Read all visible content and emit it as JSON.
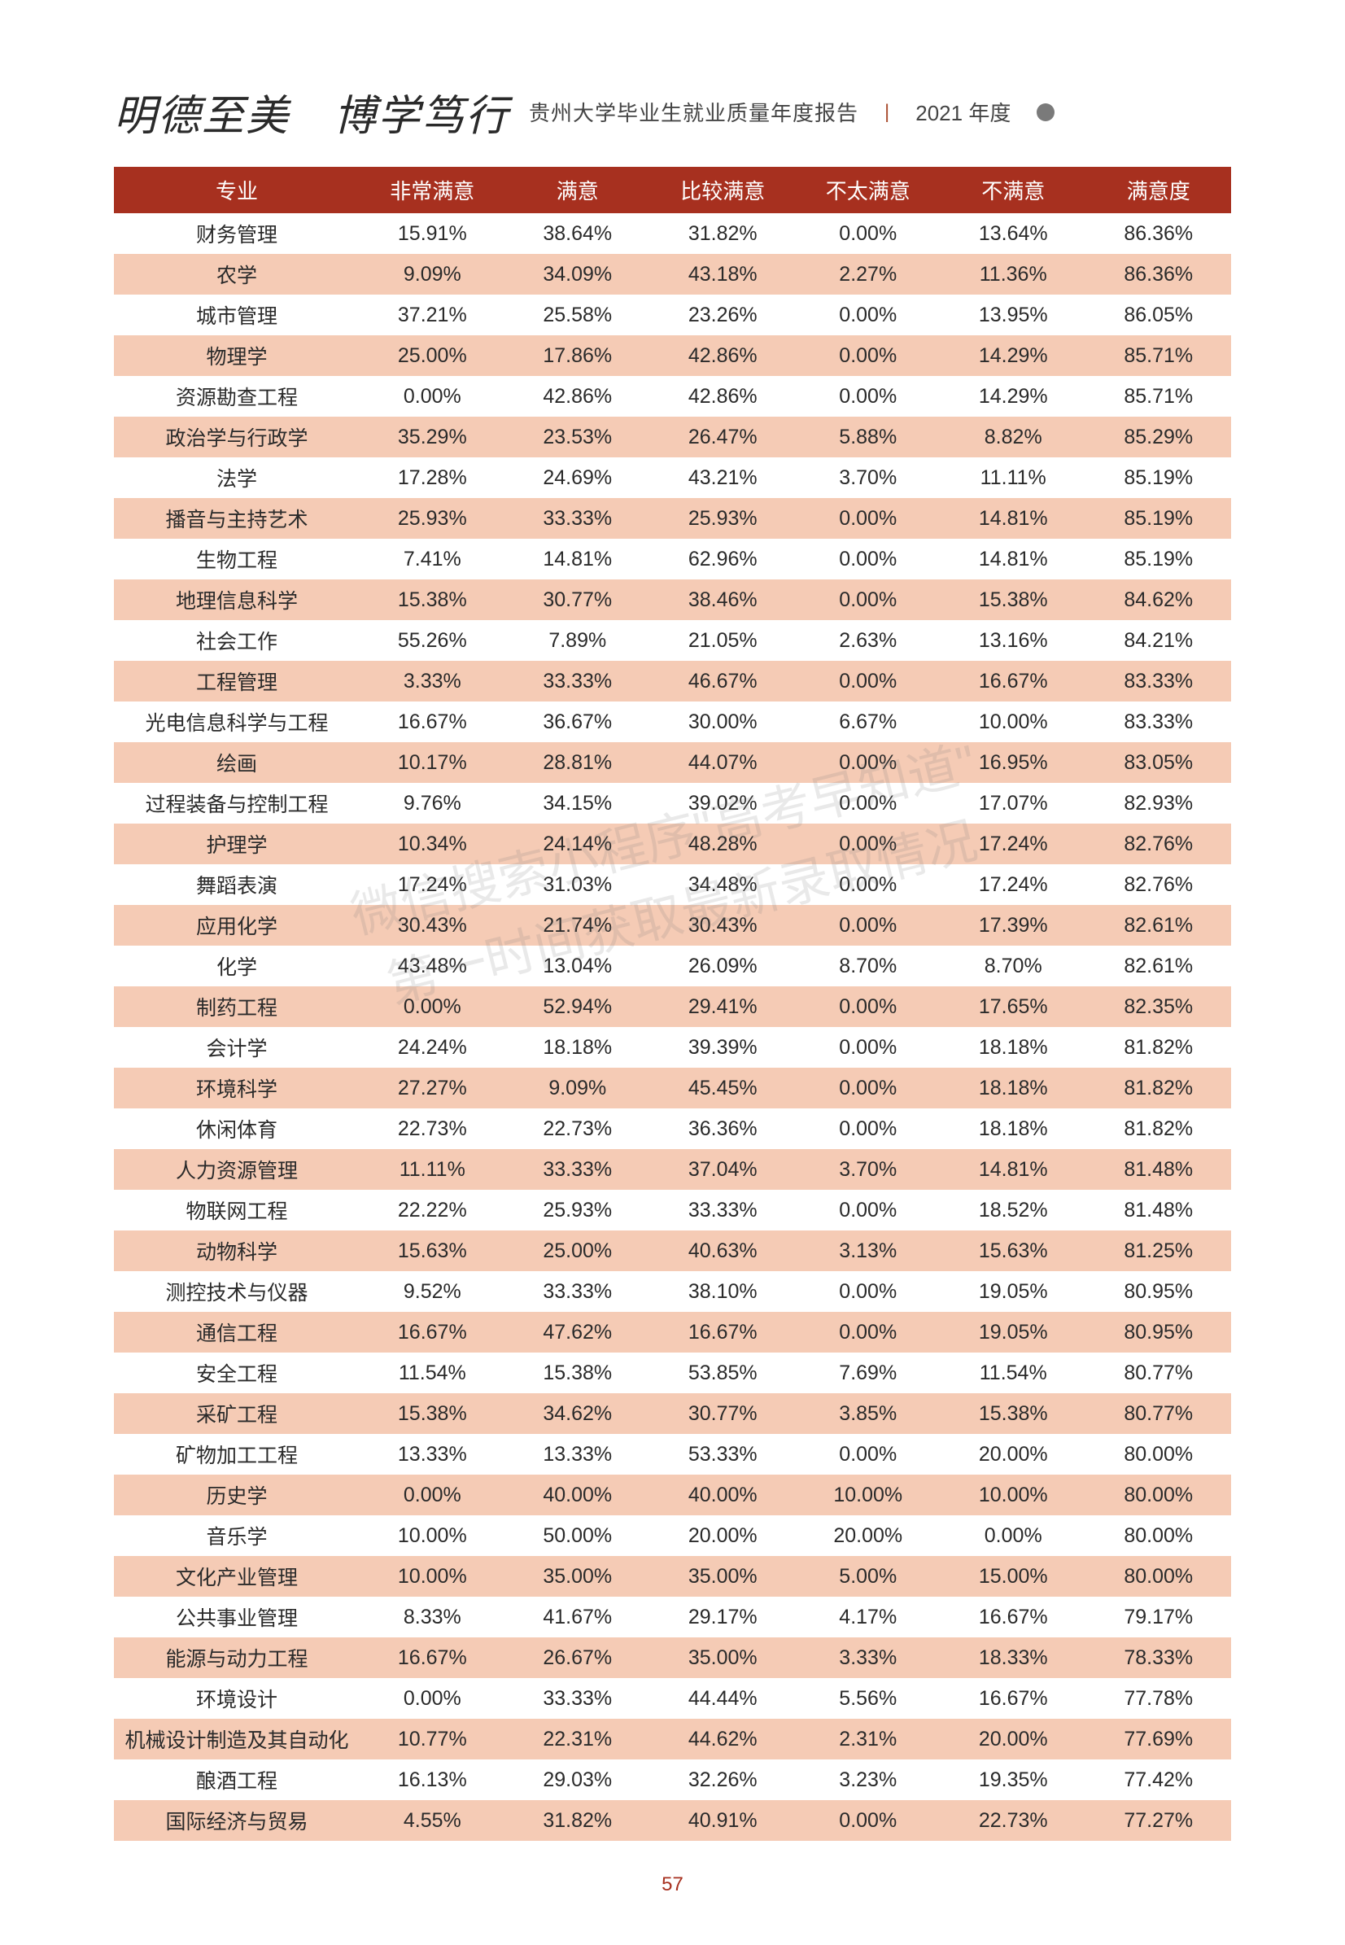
{
  "header": {
    "motto": "明德至美　博学笃行",
    "report_title": "贵州大学毕业生就业质量年度报告",
    "year": "2021 年度"
  },
  "watermark": {
    "line1": "微信搜索小程序\"高考早知道\"",
    "line2": "第一时间获取最新录取情况"
  },
  "page_number": "57",
  "table": {
    "columns": [
      "专业",
      "非常满意",
      "满意",
      "比较满意",
      "不太满意",
      "不满意",
      "满意度"
    ],
    "rows": [
      [
        "财务管理",
        "15.91%",
        "38.64%",
        "31.82%",
        "0.00%",
        "13.64%",
        "86.36%"
      ],
      [
        "农学",
        "9.09%",
        "34.09%",
        "43.18%",
        "2.27%",
        "11.36%",
        "86.36%"
      ],
      [
        "城市管理",
        "37.21%",
        "25.58%",
        "23.26%",
        "0.00%",
        "13.95%",
        "86.05%"
      ],
      [
        "物理学",
        "25.00%",
        "17.86%",
        "42.86%",
        "0.00%",
        "14.29%",
        "85.71%"
      ],
      [
        "资源勘查工程",
        "0.00%",
        "42.86%",
        "42.86%",
        "0.00%",
        "14.29%",
        "85.71%"
      ],
      [
        "政治学与行政学",
        "35.29%",
        "23.53%",
        "26.47%",
        "5.88%",
        "8.82%",
        "85.29%"
      ],
      [
        "法学",
        "17.28%",
        "24.69%",
        "43.21%",
        "3.70%",
        "11.11%",
        "85.19%"
      ],
      [
        "播音与主持艺术",
        "25.93%",
        "33.33%",
        "25.93%",
        "0.00%",
        "14.81%",
        "85.19%"
      ],
      [
        "生物工程",
        "7.41%",
        "14.81%",
        "62.96%",
        "0.00%",
        "14.81%",
        "85.19%"
      ],
      [
        "地理信息科学",
        "15.38%",
        "30.77%",
        "38.46%",
        "0.00%",
        "15.38%",
        "84.62%"
      ],
      [
        "社会工作",
        "55.26%",
        "7.89%",
        "21.05%",
        "2.63%",
        "13.16%",
        "84.21%"
      ],
      [
        "工程管理",
        "3.33%",
        "33.33%",
        "46.67%",
        "0.00%",
        "16.67%",
        "83.33%"
      ],
      [
        "光电信息科学与工程",
        "16.67%",
        "36.67%",
        "30.00%",
        "6.67%",
        "10.00%",
        "83.33%"
      ],
      [
        "绘画",
        "10.17%",
        "28.81%",
        "44.07%",
        "0.00%",
        "16.95%",
        "83.05%"
      ],
      [
        "过程装备与控制工程",
        "9.76%",
        "34.15%",
        "39.02%",
        "0.00%",
        "17.07%",
        "82.93%"
      ],
      [
        "护理学",
        "10.34%",
        "24.14%",
        "48.28%",
        "0.00%",
        "17.24%",
        "82.76%"
      ],
      [
        "舞蹈表演",
        "17.24%",
        "31.03%",
        "34.48%",
        "0.00%",
        "17.24%",
        "82.76%"
      ],
      [
        "应用化学",
        "30.43%",
        "21.74%",
        "30.43%",
        "0.00%",
        "17.39%",
        "82.61%"
      ],
      [
        "化学",
        "43.48%",
        "13.04%",
        "26.09%",
        "8.70%",
        "8.70%",
        "82.61%"
      ],
      [
        "制药工程",
        "0.00%",
        "52.94%",
        "29.41%",
        "0.00%",
        "17.65%",
        "82.35%"
      ],
      [
        "会计学",
        "24.24%",
        "18.18%",
        "39.39%",
        "0.00%",
        "18.18%",
        "81.82%"
      ],
      [
        "环境科学",
        "27.27%",
        "9.09%",
        "45.45%",
        "0.00%",
        "18.18%",
        "81.82%"
      ],
      [
        "休闲体育",
        "22.73%",
        "22.73%",
        "36.36%",
        "0.00%",
        "18.18%",
        "81.82%"
      ],
      [
        "人力资源管理",
        "11.11%",
        "33.33%",
        "37.04%",
        "3.70%",
        "14.81%",
        "81.48%"
      ],
      [
        "物联网工程",
        "22.22%",
        "25.93%",
        "33.33%",
        "0.00%",
        "18.52%",
        "81.48%"
      ],
      [
        "动物科学",
        "15.63%",
        "25.00%",
        "40.63%",
        "3.13%",
        "15.63%",
        "81.25%"
      ],
      [
        "测控技术与仪器",
        "9.52%",
        "33.33%",
        "38.10%",
        "0.00%",
        "19.05%",
        "80.95%"
      ],
      [
        "通信工程",
        "16.67%",
        "47.62%",
        "16.67%",
        "0.00%",
        "19.05%",
        "80.95%"
      ],
      [
        "安全工程",
        "11.54%",
        "15.38%",
        "53.85%",
        "7.69%",
        "11.54%",
        "80.77%"
      ],
      [
        "采矿工程",
        "15.38%",
        "34.62%",
        "30.77%",
        "3.85%",
        "15.38%",
        "80.77%"
      ],
      [
        "矿物加工工程",
        "13.33%",
        "13.33%",
        "53.33%",
        "0.00%",
        "20.00%",
        "80.00%"
      ],
      [
        "历史学",
        "0.00%",
        "40.00%",
        "40.00%",
        "10.00%",
        "10.00%",
        "80.00%"
      ],
      [
        "音乐学",
        "10.00%",
        "50.00%",
        "20.00%",
        "20.00%",
        "0.00%",
        "80.00%"
      ],
      [
        "文化产业管理",
        "10.00%",
        "35.00%",
        "35.00%",
        "5.00%",
        "15.00%",
        "80.00%"
      ],
      [
        "公共事业管理",
        "8.33%",
        "41.67%",
        "29.17%",
        "4.17%",
        "16.67%",
        "79.17%"
      ],
      [
        "能源与动力工程",
        "16.67%",
        "26.67%",
        "35.00%",
        "3.33%",
        "18.33%",
        "78.33%"
      ],
      [
        "环境设计",
        "0.00%",
        "33.33%",
        "44.44%",
        "5.56%",
        "16.67%",
        "77.78%"
      ],
      [
        "机械设计制造及其自动化",
        "10.77%",
        "22.31%",
        "44.62%",
        "2.31%",
        "20.00%",
        "77.69%"
      ],
      [
        "酿酒工程",
        "16.13%",
        "29.03%",
        "32.26%",
        "3.23%",
        "19.35%",
        "77.42%"
      ],
      [
        "国际经济与贸易",
        "4.55%",
        "31.82%",
        "40.91%",
        "0.00%",
        "22.73%",
        "77.27%"
      ]
    ],
    "header_bg": "#a7301f",
    "header_fg": "#ffffff",
    "row_odd_bg": "#ffffff",
    "row_even_bg": "#f5cbb5"
  }
}
